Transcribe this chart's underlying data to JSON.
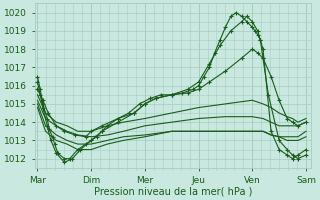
{
  "title": "",
  "xlabel": "Pression niveau de la mer( hPa )",
  "ylabel": "",
  "bg_color": "#c8e8e0",
  "grid_color": "#a8ccc0",
  "line_color": "#1a5c1a",
  "marker_color": "#1a5c1a",
  "ylim": [
    1011.5,
    1020.5
  ],
  "day_labels": [
    "Mar",
    "Dim",
    "Mer",
    "Jeu",
    "Ven",
    "Sam"
  ],
  "day_positions": [
    0,
    1,
    2,
    3,
    4,
    5
  ],
  "yticks": [
    1012,
    1013,
    1014,
    1015,
    1016,
    1017,
    1018,
    1019,
    1020
  ],
  "xlim": [
    -0.05,
    5.1
  ],
  "series": [
    {
      "xs": [
        0.0,
        0.05,
        0.1,
        0.18,
        0.22,
        0.28,
        0.32,
        0.38,
        0.5,
        0.6,
        0.75,
        0.9,
        1.0,
        1.1,
        1.2,
        1.3,
        1.5,
        1.7,
        1.9,
        2.1,
        2.3,
        2.5,
        2.7,
        2.9,
        3.0,
        3.1,
        3.2,
        3.3,
        3.4,
        3.5,
        3.6,
        3.7,
        3.8,
        3.9,
        4.0,
        4.05,
        4.1,
        4.15,
        4.2,
        4.35,
        4.5,
        4.65,
        4.75,
        4.85,
        5.0
      ],
      "ys": [
        1016.5,
        1015.8,
        1015.0,
        1014.2,
        1013.6,
        1013.2,
        1012.8,
        1012.3,
        1012.0,
        1012.0,
        1012.5,
        1012.8,
        1013.0,
        1013.2,
        1013.5,
        1013.8,
        1014.2,
        1014.5,
        1015.0,
        1015.3,
        1015.5,
        1015.5,
        1015.6,
        1015.8,
        1016.0,
        1016.5,
        1017.0,
        1017.8,
        1018.5,
        1019.2,
        1019.8,
        1020.0,
        1019.8,
        1019.5,
        1019.2,
        1019.0,
        1018.8,
        1018.5,
        1018.0,
        1013.5,
        1012.5,
        1012.2,
        1012.0,
        1012.2,
        1012.5
      ],
      "marker": true
    },
    {
      "xs": [
        0.0,
        0.05,
        0.1,
        0.18,
        0.25,
        0.35,
        0.5,
        0.65,
        0.8,
        1.0,
        1.2,
        1.5,
        1.8,
        2.0,
        2.2,
        2.5,
        2.8,
        3.0,
        3.2,
        3.4,
        3.6,
        3.8,
        3.9,
        4.0,
        4.1,
        4.15,
        4.2,
        4.3,
        4.5,
        4.65,
        4.75,
        4.85,
        5.0
      ],
      "ys": [
        1016.2,
        1015.5,
        1014.8,
        1013.8,
        1013.0,
        1012.3,
        1011.8,
        1012.0,
        1012.5,
        1013.0,
        1013.5,
        1014.0,
        1014.5,
        1015.0,
        1015.3,
        1015.5,
        1015.8,
        1016.2,
        1017.2,
        1018.2,
        1019.0,
        1019.5,
        1019.8,
        1019.5,
        1019.0,
        1018.5,
        1017.5,
        1015.5,
        1013.0,
        1012.5,
        1012.2,
        1012.0,
        1012.2
      ],
      "marker": true
    },
    {
      "xs": [
        0.0,
        0.1,
        0.2,
        0.35,
        0.5,
        0.7,
        0.9,
        1.0,
        1.2,
        1.5,
        1.8,
        2.0,
        2.2,
        2.5,
        2.8,
        3.0,
        3.2,
        3.5,
        3.8,
        4.0,
        4.1,
        4.2,
        4.35,
        4.5,
        4.65,
        4.75,
        4.85,
        5.0
      ],
      "ys": [
        1015.8,
        1015.2,
        1014.5,
        1013.8,
        1013.5,
        1013.3,
        1013.2,
        1013.5,
        1013.8,
        1014.2,
        1014.5,
        1015.0,
        1015.3,
        1015.5,
        1015.6,
        1015.8,
        1016.2,
        1016.8,
        1017.5,
        1018.0,
        1017.8,
        1017.5,
        1016.5,
        1015.2,
        1014.2,
        1014.0,
        1013.8,
        1014.0
      ],
      "marker": true
    },
    {
      "xs": [
        0.0,
        0.15,
        0.35,
        0.55,
        0.75,
        1.0,
        1.3,
        1.6,
        2.0,
        2.5,
        3.0,
        3.5,
        4.0,
        4.2,
        4.35,
        4.5,
        4.65,
        4.75,
        4.85,
        5.0
      ],
      "ys": [
        1015.5,
        1014.5,
        1014.0,
        1013.8,
        1013.5,
        1013.5,
        1013.8,
        1014.0,
        1014.2,
        1014.5,
        1014.8,
        1015.0,
        1015.2,
        1015.0,
        1014.8,
        1014.5,
        1014.3,
        1014.2,
        1014.0,
        1014.2
      ],
      "marker": false
    },
    {
      "xs": [
        0.0,
        0.15,
        0.35,
        0.55,
        0.75,
        1.0,
        1.3,
        1.6,
        2.0,
        2.5,
        3.0,
        3.5,
        4.0,
        4.2,
        4.35,
        4.5,
        4.65,
        4.75,
        4.85,
        5.0
      ],
      "ys": [
        1015.2,
        1014.2,
        1013.8,
        1013.5,
        1013.3,
        1013.2,
        1013.3,
        1013.5,
        1013.8,
        1014.0,
        1014.2,
        1014.3,
        1014.3,
        1014.2,
        1014.0,
        1013.8,
        1013.8,
        1013.8,
        1013.8,
        1014.0
      ],
      "marker": false
    },
    {
      "xs": [
        0.0,
        0.15,
        0.35,
        0.55,
        0.75,
        1.0,
        1.3,
        1.6,
        2.0,
        2.5,
        3.0,
        3.5,
        4.0,
        4.2,
        4.35,
        4.5,
        4.65,
        4.75,
        4.85,
        5.0
      ],
      "ys": [
        1015.0,
        1013.8,
        1013.3,
        1013.0,
        1012.8,
        1012.8,
        1013.0,
        1013.2,
        1013.3,
        1013.5,
        1013.5,
        1013.5,
        1013.5,
        1013.5,
        1013.3,
        1013.2,
        1013.2,
        1013.2,
        1013.2,
        1013.5
      ],
      "marker": false
    },
    {
      "xs": [
        0.0,
        0.15,
        0.35,
        0.55,
        0.75,
        1.0,
        1.3,
        1.6,
        2.0,
        2.5,
        3.0,
        3.5,
        4.0,
        4.2,
        4.35,
        4.5,
        4.65,
        4.75,
        4.85,
        5.0
      ],
      "ys": [
        1014.8,
        1013.5,
        1013.0,
        1012.8,
        1012.5,
        1012.5,
        1012.8,
        1013.0,
        1013.2,
        1013.5,
        1013.5,
        1013.5,
        1013.5,
        1013.5,
        1013.3,
        1013.2,
        1013.0,
        1013.0,
        1013.0,
        1013.2
      ],
      "marker": false
    }
  ]
}
